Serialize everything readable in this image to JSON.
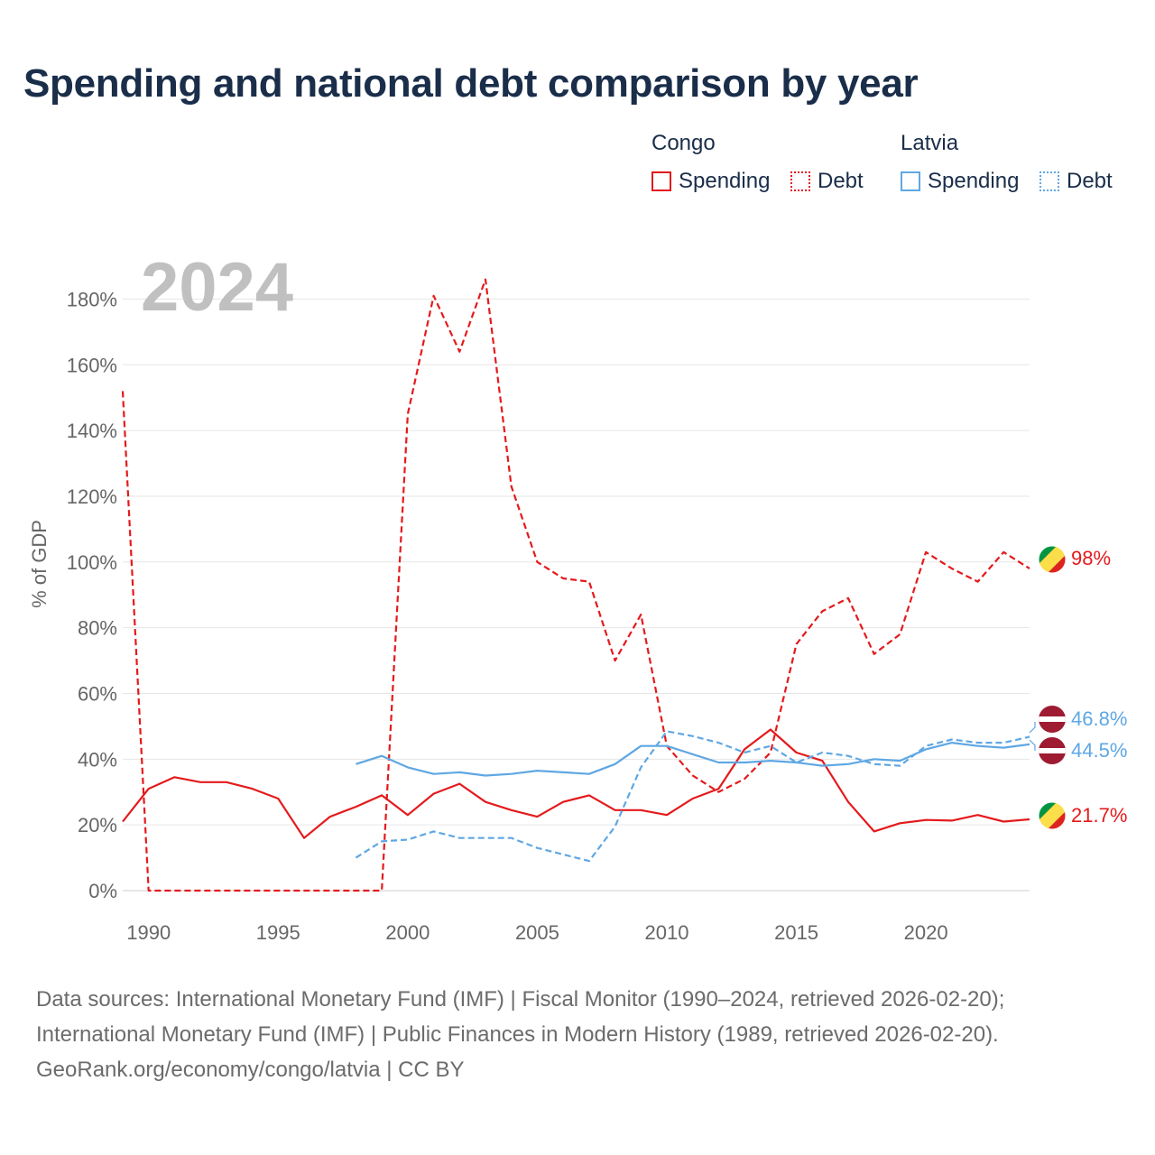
{
  "title": "Spending and national debt comparison by year",
  "legend": {
    "groups": [
      {
        "country": "Congo",
        "spending_label": "Spending",
        "debt_label": "Debt",
        "color": "#e41a1c"
      },
      {
        "country": "Latvia",
        "spending_label": "Spending",
        "debt_label": "Debt",
        "color": "#5fa7e3"
      }
    ]
  },
  "footer": {
    "line1": "Data sources: International Monetary Fund (IMF) | Fiscal Monitor (1990–2024, retrieved 2026-02-20);",
    "line2": "International Monetary Fund (IMF) | Public Finances in Modern History (1989, retrieved 2026-02-20).",
    "line3": "GeoRank.org/economy/congo/latvia | CC BY"
  },
  "chart_data": {
    "type": "line",
    "watermark": "2024",
    "ylabel": "% of GDP",
    "ylim": [
      0,
      190
    ],
    "xlim": [
      1989,
      2024
    ],
    "yticks": [
      0,
      20,
      40,
      60,
      80,
      100,
      120,
      140,
      160,
      180
    ],
    "ytick_labels": [
      "0%",
      "20%",
      "40%",
      "60%",
      "80%",
      "100%",
      "120%",
      "140%",
      "160%",
      "180%"
    ],
    "xticks": [
      1990,
      1995,
      2000,
      2005,
      2010,
      2015,
      2020
    ],
    "xtick_labels": [
      "1990",
      "1995",
      "2000",
      "2005",
      "2010",
      "2015",
      "2020"
    ],
    "series": [
      {
        "name": "Congo Debt",
        "country": "Congo",
        "metric": "Debt",
        "style": "dashed",
        "color": "#e41a1c",
        "x": [
          1989,
          1990,
          1991,
          1992,
          1993,
          1994,
          1995,
          1996,
          1997,
          1998,
          1999,
          2000,
          2001,
          2002,
          2003,
          2004,
          2005,
          2006,
          2007,
          2008,
          2009,
          2010,
          2011,
          2012,
          2013,
          2014,
          2015,
          2016,
          2017,
          2018,
          2019,
          2020,
          2021,
          2022,
          2023,
          2024
        ],
        "values": [
          152,
          0,
          0,
          0,
          0,
          0,
          0,
          0,
          0,
          0,
          0,
          145,
          181,
          164,
          186,
          123,
          100,
          95,
          94,
          70,
          84,
          44,
          35,
          30,
          34,
          42,
          75,
          85,
          89,
          72,
          78,
          103,
          98,
          94,
          103,
          98
        ],
        "end_label": "98%"
      },
      {
        "name": "Congo Spending",
        "country": "Congo",
        "metric": "Spending",
        "style": "solid",
        "color": "#e41a1c",
        "x": [
          1989,
          1990,
          1991,
          1992,
          1993,
          1994,
          1995,
          1996,
          1997,
          1998,
          1999,
          2000,
          2001,
          2002,
          2003,
          2004,
          2005,
          2006,
          2007,
          2008,
          2009,
          2010,
          2011,
          2012,
          2013,
          2014,
          2015,
          2016,
          2017,
          2018,
          2019,
          2020,
          2021,
          2022,
          2023,
          2024
        ],
        "values": [
          21,
          31,
          34.5,
          33,
          33,
          31,
          28,
          16,
          22.5,
          25.5,
          29,
          23,
          29.5,
          32.5,
          27,
          24.5,
          22.5,
          27,
          29,
          24.5,
          24.5,
          23,
          28,
          31,
          43,
          49,
          42,
          39.5,
          27,
          18,
          20.5,
          21.5,
          21.3,
          23,
          21,
          21.7
        ],
        "end_label": "21.7%"
      },
      {
        "name": "Latvia Debt",
        "country": "Latvia",
        "metric": "Debt",
        "style": "dashed",
        "color": "#5fa7e3",
        "x": [
          1998,
          1999,
          2000,
          2001,
          2002,
          2003,
          2004,
          2005,
          2006,
          2007,
          2008,
          2009,
          2010,
          2011,
          2012,
          2013,
          2014,
          2015,
          2016,
          2017,
          2018,
          2019,
          2020,
          2021,
          2022,
          2023,
          2024
        ],
        "values": [
          10,
          15,
          15.5,
          18,
          16,
          16,
          16,
          13,
          11,
          9,
          19.5,
          37.5,
          48.5,
          47,
          45,
          42,
          44,
          39,
          42,
          41,
          38.5,
          38,
          44,
          46,
          45,
          45,
          46.8
        ],
        "end_label": "46.8%"
      },
      {
        "name": "Latvia Spending",
        "country": "Latvia",
        "metric": "Spending",
        "style": "solid",
        "color": "#5fa7e3",
        "x": [
          1998,
          1999,
          2000,
          2001,
          2002,
          2003,
          2004,
          2005,
          2006,
          2007,
          2008,
          2009,
          2010,
          2011,
          2012,
          2013,
          2014,
          2015,
          2016,
          2017,
          2018,
          2019,
          2020,
          2021,
          2022,
          2023,
          2024
        ],
        "values": [
          38.5,
          41,
          37.5,
          35.5,
          36,
          35,
          35.5,
          36.5,
          36,
          35.5,
          38.5,
          44,
          44,
          41.5,
          39,
          39,
          39.5,
          39,
          38,
          38.5,
          40,
          39.5,
          43,
          45,
          44,
          43.5,
          44.5
        ],
        "end_label": "44.5%"
      }
    ]
  }
}
